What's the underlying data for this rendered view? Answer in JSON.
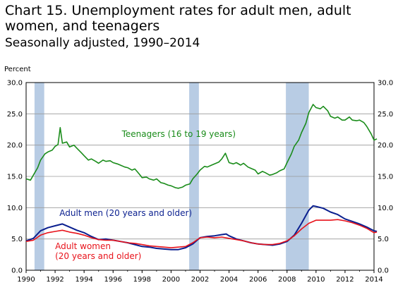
{
  "chart_data": {
    "type": "line",
    "title": "Chart 15.  Unemployment rates for adult men, adult women, and teenagers",
    "subtitle": "Seasonally adjusted, 1990–2014",
    "ylabel": "Percent",
    "xlabel": "",
    "xlim": [
      1990,
      2014
    ],
    "ylim": [
      0,
      30
    ],
    "y_ticks": [
      "0.0",
      "5.0",
      "10.0",
      "15.0",
      "20.0",
      "25.0",
      "30.0"
    ],
    "x_ticks": [
      "1990",
      "1992",
      "1994",
      "1996",
      "1998",
      "2000",
      "2002",
      "2004",
      "2006",
      "2008",
      "2010",
      "2012",
      "2014"
    ],
    "grid": "horizontal",
    "recessions": [
      [
        1990.58,
        1991.25
      ],
      [
        2001.25,
        2001.92
      ],
      [
        2007.92,
        2009.5
      ]
    ],
    "series": [
      {
        "name": "Teenagers (16 to 19 years)",
        "color": "#1a8c1a",
        "label_pos": [
          1996.6,
          21.3
        ],
        "points": [
          [
            1990.0,
            14.6
          ],
          [
            1990.3,
            14.4
          ],
          [
            1990.5,
            15.2
          ],
          [
            1990.8,
            16.4
          ],
          [
            1991.0,
            17.6
          ],
          [
            1991.3,
            18.6
          ],
          [
            1991.5,
            18.9
          ],
          [
            1991.8,
            19.2
          ],
          [
            1992.0,
            19.8
          ],
          [
            1992.2,
            20.1
          ],
          [
            1992.35,
            22.8
          ],
          [
            1992.5,
            20.3
          ],
          [
            1992.8,
            20.5
          ],
          [
            1993.0,
            19.7
          ],
          [
            1993.3,
            20.0
          ],
          [
            1993.5,
            19.5
          ],
          [
            1993.8,
            18.8
          ],
          [
            1994.0,
            18.3
          ],
          [
            1994.3,
            17.6
          ],
          [
            1994.5,
            17.8
          ],
          [
            1994.8,
            17.4
          ],
          [
            1995.0,
            17.1
          ],
          [
            1995.3,
            17.6
          ],
          [
            1995.5,
            17.4
          ],
          [
            1995.8,
            17.5
          ],
          [
            1996.0,
            17.2
          ],
          [
            1996.3,
            17.0
          ],
          [
            1996.5,
            16.8
          ],
          [
            1996.8,
            16.5
          ],
          [
            1997.0,
            16.4
          ],
          [
            1997.3,
            16.0
          ],
          [
            1997.5,
            16.2
          ],
          [
            1997.8,
            15.4
          ],
          [
            1998.0,
            14.8
          ],
          [
            1998.3,
            14.9
          ],
          [
            1998.5,
            14.6
          ],
          [
            1998.8,
            14.4
          ],
          [
            1999.0,
            14.6
          ],
          [
            1999.3,
            14.0
          ],
          [
            1999.5,
            13.9
          ],
          [
            1999.8,
            13.6
          ],
          [
            2000.0,
            13.5
          ],
          [
            2000.3,
            13.2
          ],
          [
            2000.5,
            13.1
          ],
          [
            2000.8,
            13.3
          ],
          [
            2001.0,
            13.6
          ],
          [
            2001.3,
            13.8
          ],
          [
            2001.5,
            14.6
          ],
          [
            2001.8,
            15.4
          ],
          [
            2002.0,
            16.0
          ],
          [
            2002.3,
            16.6
          ],
          [
            2002.5,
            16.5
          ],
          [
            2002.8,
            16.8
          ],
          [
            2003.0,
            17.0
          ],
          [
            2003.3,
            17.3
          ],
          [
            2003.5,
            17.8
          ],
          [
            2003.75,
            18.7
          ],
          [
            2004.0,
            17.2
          ],
          [
            2004.3,
            17.0
          ],
          [
            2004.5,
            17.2
          ],
          [
            2004.8,
            16.8
          ],
          [
            2005.0,
            17.1
          ],
          [
            2005.3,
            16.5
          ],
          [
            2005.5,
            16.3
          ],
          [
            2005.8,
            16.0
          ],
          [
            2006.0,
            15.4
          ],
          [
            2006.3,
            15.8
          ],
          [
            2006.5,
            15.6
          ],
          [
            2006.8,
            15.2
          ],
          [
            2007.0,
            15.3
          ],
          [
            2007.3,
            15.6
          ],
          [
            2007.5,
            15.9
          ],
          [
            2007.8,
            16.2
          ],
          [
            2008.0,
            17.2
          ],
          [
            2008.3,
            18.6
          ],
          [
            2008.5,
            19.8
          ],
          [
            2008.8,
            20.8
          ],
          [
            2009.0,
            22.0
          ],
          [
            2009.3,
            23.5
          ],
          [
            2009.5,
            25.2
          ],
          [
            2009.8,
            26.5
          ],
          [
            2010.0,
            26.0
          ],
          [
            2010.3,
            25.8
          ],
          [
            2010.5,
            26.2
          ],
          [
            2010.8,
            25.5
          ],
          [
            2011.0,
            24.6
          ],
          [
            2011.3,
            24.3
          ],
          [
            2011.5,
            24.5
          ],
          [
            2011.8,
            24.0
          ],
          [
            2012.0,
            24.0
          ],
          [
            2012.3,
            24.5
          ],
          [
            2012.5,
            24.0
          ],
          [
            2012.8,
            23.9
          ],
          [
            2013.0,
            24.0
          ],
          [
            2013.3,
            23.6
          ],
          [
            2013.5,
            23.0
          ],
          [
            2013.8,
            21.8
          ],
          [
            2014.0,
            20.8
          ],
          [
            2014.2,
            21.0
          ]
        ]
      },
      {
        "name": "Adult men (20 years and older)",
        "color": "#0a1f8f",
        "label_pos": [
          1992.3,
          8.7
        ],
        "points": [
          [
            1990.0,
            4.7
          ],
          [
            1990.5,
            5.1
          ],
          [
            1991.0,
            6.3
          ],
          [
            1991.5,
            6.8
          ],
          [
            1992.0,
            7.1
          ],
          [
            1992.5,
            7.4
          ],
          [
            1993.0,
            6.9
          ],
          [
            1993.5,
            6.4
          ],
          [
            1994.0,
            6.0
          ],
          [
            1994.5,
            5.4
          ],
          [
            1995.0,
            4.9
          ],
          [
            1995.5,
            5.0
          ],
          [
            1996.0,
            4.8
          ],
          [
            1996.5,
            4.6
          ],
          [
            1997.0,
            4.4
          ],
          [
            1997.5,
            4.1
          ],
          [
            1998.0,
            3.8
          ],
          [
            1998.5,
            3.7
          ],
          [
            1999.0,
            3.5
          ],
          [
            1999.5,
            3.4
          ],
          [
            2000.0,
            3.3
          ],
          [
            2000.5,
            3.3
          ],
          [
            2001.0,
            3.6
          ],
          [
            2001.5,
            4.2
          ],
          [
            2002.0,
            5.2
          ],
          [
            2002.5,
            5.4
          ],
          [
            2003.0,
            5.5
          ],
          [
            2003.5,
            5.7
          ],
          [
            2003.8,
            5.8
          ],
          [
            2004.0,
            5.5
          ],
          [
            2004.5,
            5.0
          ],
          [
            2005.0,
            4.7
          ],
          [
            2005.5,
            4.4
          ],
          [
            2006.0,
            4.2
          ],
          [
            2006.5,
            4.1
          ],
          [
            2007.0,
            4.0
          ],
          [
            2007.5,
            4.2
          ],
          [
            2008.0,
            4.6
          ],
          [
            2008.5,
            5.6
          ],
          [
            2009.0,
            7.5
          ],
          [
            2009.5,
            9.6
          ],
          [
            2009.8,
            10.3
          ],
          [
            2010.0,
            10.2
          ],
          [
            2010.5,
            9.9
          ],
          [
            2011.0,
            9.3
          ],
          [
            2011.5,
            8.9
          ],
          [
            2012.0,
            8.2
          ],
          [
            2012.5,
            7.8
          ],
          [
            2013.0,
            7.4
          ],
          [
            2013.5,
            6.9
          ],
          [
            2014.0,
            6.3
          ],
          [
            2014.2,
            6.2
          ]
        ]
      },
      {
        "name": "Adult women",
        "name_line2": "(20 years and older)",
        "color": "#e8131b",
        "label_pos": [
          1992.0,
          3.4
        ],
        "points": [
          [
            1990.0,
            4.6
          ],
          [
            1990.5,
            4.8
          ],
          [
            1991.0,
            5.6
          ],
          [
            1991.5,
            6.0
          ],
          [
            1992.0,
            6.2
          ],
          [
            1992.5,
            6.4
          ],
          [
            1993.0,
            6.1
          ],
          [
            1993.5,
            5.9
          ],
          [
            1994.0,
            5.6
          ],
          [
            1994.5,
            5.2
          ],
          [
            1995.0,
            4.9
          ],
          [
            1995.5,
            4.8
          ],
          [
            1996.0,
            4.8
          ],
          [
            1996.5,
            4.6
          ],
          [
            1997.0,
            4.4
          ],
          [
            1997.5,
            4.3
          ],
          [
            1998.0,
            4.1
          ],
          [
            1998.5,
            3.9
          ],
          [
            1999.0,
            3.8
          ],
          [
            1999.5,
            3.7
          ],
          [
            2000.0,
            3.6
          ],
          [
            2000.5,
            3.7
          ],
          [
            2001.0,
            3.8
          ],
          [
            2001.5,
            4.4
          ],
          [
            2002.0,
            5.2
          ],
          [
            2002.5,
            5.3
          ],
          [
            2003.0,
            5.2
          ],
          [
            2003.5,
            5.3
          ],
          [
            2004.0,
            5.1
          ],
          [
            2004.5,
            4.9
          ],
          [
            2005.0,
            4.7
          ],
          [
            2005.5,
            4.4
          ],
          [
            2006.0,
            4.2
          ],
          [
            2006.5,
            4.1
          ],
          [
            2007.0,
            4.1
          ],
          [
            2007.5,
            4.3
          ],
          [
            2008.0,
            4.7
          ],
          [
            2008.5,
            5.5
          ],
          [
            2009.0,
            6.6
          ],
          [
            2009.5,
            7.5
          ],
          [
            2010.0,
            8.0
          ],
          [
            2010.5,
            8.0
          ],
          [
            2011.0,
            8.0
          ],
          [
            2011.5,
            8.1
          ],
          [
            2012.0,
            7.9
          ],
          [
            2012.5,
            7.6
          ],
          [
            2013.0,
            7.2
          ],
          [
            2013.5,
            6.7
          ],
          [
            2014.0,
            6.0
          ],
          [
            2014.2,
            6.1
          ]
        ]
      }
    ]
  }
}
